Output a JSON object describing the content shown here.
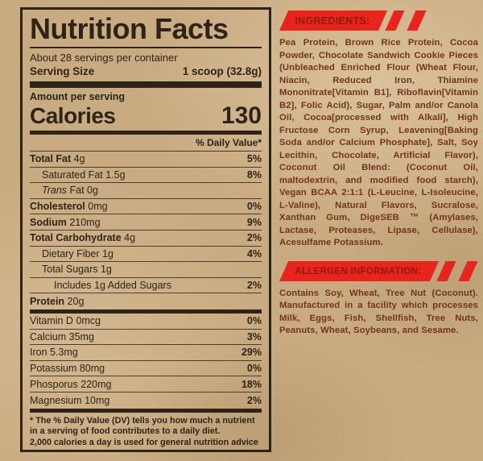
{
  "colors": {
    "paper": "#c9ab81",
    "ink": "#2d2418",
    "banner_red": "#e8241c",
    "banner_text_red": "#8c1d10",
    "body_red": "#74331f"
  },
  "nutrition": {
    "title": "Nutrition Facts",
    "servings_per_container": "About 28 servings per container",
    "serving_size_label": "Serving Size",
    "serving_size_value": "1 scoop (32.8g)",
    "amount_per_serving": "Amount per serving",
    "calories_label": "Calories",
    "calories_value": "130",
    "daily_value_header": "% Daily Value*",
    "rows": [
      {
        "name": "Total Fat",
        "amount": "4g",
        "dv": "5%",
        "bold": true,
        "indent": 0
      },
      {
        "name": "Saturated Fat",
        "amount": "1.5g",
        "dv": "8%",
        "bold": false,
        "indent": 1
      },
      {
        "italic": "Trans",
        "name": " Fat",
        "amount": "0g",
        "dv": "",
        "bold": false,
        "indent": 1
      },
      {
        "name": "Cholesterol",
        "amount": "0mg",
        "dv": "0%",
        "bold": true,
        "indent": 0
      },
      {
        "name": "Sodium",
        "amount": "210mg",
        "dv": "9%",
        "bold": true,
        "indent": 0
      },
      {
        "name": "Total Carbohydrate",
        "amount": "4g",
        "dv": "2%",
        "bold": true,
        "indent": 0
      },
      {
        "name": "Dietary Fiber",
        "amount": "1g",
        "dv": "4%",
        "bold": false,
        "indent": 1
      },
      {
        "name": "Total Sugars",
        "amount": "1g",
        "dv": "",
        "bold": false,
        "indent": 1
      },
      {
        "name": "Includes 1g Added Sugars",
        "amount": "",
        "dv": "2%",
        "bold": false,
        "indent": 2
      },
      {
        "name": "Protein",
        "amount": "20g",
        "dv": "",
        "bold": true,
        "indent": 0
      }
    ],
    "vitamins": [
      {
        "name": "Vitamin D",
        "amount": "0mcg",
        "dv": "0%"
      },
      {
        "name": "Calcium",
        "amount": "35mg",
        "dv": "3%"
      },
      {
        "name": "Iron",
        "amount": "5.3mg",
        "dv": "29%"
      },
      {
        "name": "Potassium",
        "amount": "80mg",
        "dv": "0%"
      },
      {
        "name": "Phosporus",
        "amount": "220mg",
        "dv": "18%"
      },
      {
        "name": "Magnesium",
        "amount": "10mg",
        "dv": "2%"
      }
    ],
    "footnote_lines": [
      "* The % Daily Value (DV) tells you how much a nutrient",
      "in a serving of food contributes to a daily diet.",
      "2,000 calories a day is used for general nutrition advice"
    ]
  },
  "ingredients": {
    "header": "INGREDIENTS:",
    "text": "Pea Protein, Brown Rice Protein, Cocoa Powder, Chocolate Sandwich Cookie Pieces (Unbleached Enriched Flour (Wheat Flour, Niacin, Reduced Iron, Thiamine Mononitrate[Vitamin B1], Riboflavin[Vitamin B2], Folic Acid), Sugar, Palm and/or Canola Oil, Cocoa[processed with Alkali], High Fructose Corn Syrup, Leavening[Baking Soda and/or Calcium Phosphate], Salt, Soy Lecithin, Chocolate, Artificial Flavor), Coconut Oil Blend: (Coconut Oil, maltodextrin, and modified food starch), Vegan BCAA 2:1:1 (L-Leucine, L-Isoleucine, L-Valine), Natural Flavors, Sucralose, Xanthan Gum, DigeSEB ™ (Amylases, Lactase, Proteases, Lipase, Cellulase), Acesulfame Potassium."
  },
  "allergen": {
    "header": "ALLERGEN INFORMATION:",
    "text": "Contains Soy, Wheat, Tree Nut (Coconut). Manufactured in a facility which processes Milk, Eggs, Fish, Shellfish, Tree Nuts, Peanuts, Wheat, Soybeans, and Sesame."
  }
}
